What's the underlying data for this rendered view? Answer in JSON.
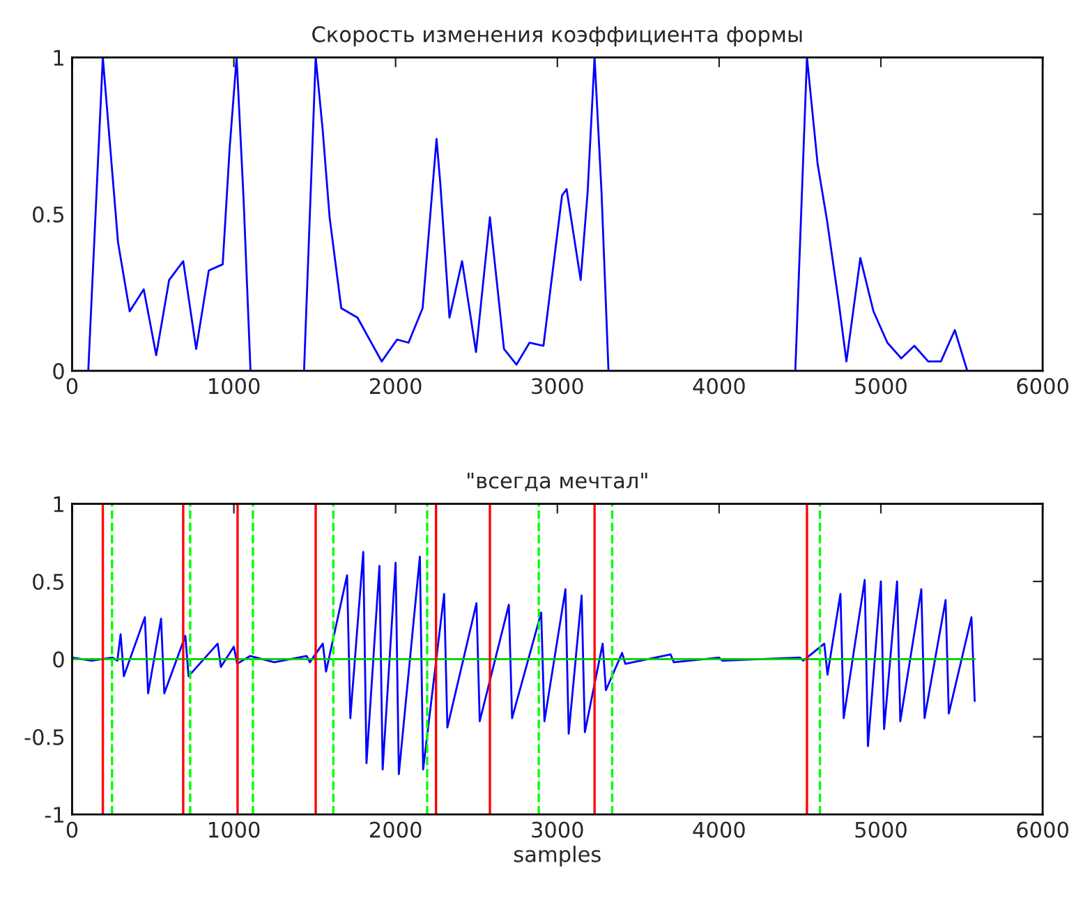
{
  "chart_data": [
    {
      "type": "line",
      "title": "Скорость изменения коэффициента формы",
      "xlim": [
        0,
        6000
      ],
      "xticks": [
        0,
        1000,
        2000,
        3000,
        4000,
        5000,
        6000
      ],
      "ylim": [
        0,
        1
      ],
      "yticks": [
        0,
        0.5,
        1
      ],
      "grid": false,
      "series": [
        {
          "color": "#0000ff",
          "x": [
            100,
            190,
            284,
            356,
            443,
            520,
            600,
            687,
            767,
            845,
            931,
            974,
            1017,
            1060,
            1103,
            1270,
            1434,
            1506,
            1549,
            1592,
            1664,
            1764,
            1914,
            2009,
            2080,
            2167,
            2253,
            2276,
            2333,
            2411,
            2497,
            2583,
            2670,
            2747,
            2828,
            2914,
            3029,
            3057,
            3144,
            3187,
            3230,
            3273,
            3316,
            3900,
            4471,
            4543,
            4609,
            4667,
            4739,
            4787,
            4873,
            4954,
            5040,
            5126,
            5207,
            5293,
            5371,
            5457,
            5534
          ],
          "values": [
            0,
            1,
            0.41,
            0.19,
            0.26,
            0.05,
            0.29,
            0.35,
            0.07,
            0.32,
            0.34,
            0.71,
            1,
            0.55,
            0,
            null,
            0,
            1,
            0.77,
            0.49,
            0.2,
            0.17,
            0.03,
            0.1,
            0.09,
            0.2,
            0.74,
            0.6,
            0.17,
            0.35,
            0.06,
            0.49,
            0.07,
            0.02,
            0.09,
            0.08,
            0.56,
            0.58,
            0.29,
            0.57,
            1,
            0.57,
            0,
            null,
            0,
            1,
            0.66,
            0.48,
            0.22,
            0.03,
            0.36,
            0.19,
            0.09,
            0.04,
            0.08,
            0.03,
            0.03,
            0.13,
            0
          ]
        }
      ]
    },
    {
      "type": "line",
      "title": "\"всегда мечтал\"",
      "xlabel": "samples",
      "xlim": [
        0,
        6000
      ],
      "xticks": [
        0,
        1000,
        2000,
        3000,
        4000,
        5000,
        6000
      ],
      "ylim": [
        -1,
        1
      ],
      "yticks": [
        -1,
        -0.5,
        0,
        0.5,
        1
      ],
      "grid": false,
      "series": [
        {
          "color": "#0000ff",
          "line_style": "solid",
          "x": [
            0,
            120,
            250,
            280,
            300,
            320,
            450,
            470,
            550,
            570,
            700,
            720,
            900,
            920,
            1000,
            1020,
            1100,
            1250,
            1450,
            1470,
            1550,
            1570,
            1700,
            1720,
            1800,
            1820,
            1900,
            1920,
            2000,
            2020,
            2150,
            2170,
            2300,
            2320,
            2500,
            2520,
            2700,
            2720,
            2900,
            2920,
            3050,
            3070,
            3150,
            3170,
            3280,
            3300,
            3400,
            3420,
            3700,
            3720,
            4000,
            4020,
            4500,
            4520,
            4650,
            4670,
            4750,
            4770,
            4900,
            4920,
            5000,
            5020,
            5100,
            5120,
            5250,
            5270,
            5400,
            5420,
            5560,
            5580
          ],
          "values": [
            0.01,
            -0.01,
            0.01,
            -0.01,
            0.16,
            -0.11,
            0.27,
            -0.22,
            0.26,
            -0.22,
            0.15,
            -0.11,
            0.1,
            -0.05,
            0.08,
            -0.03,
            0.02,
            -0.02,
            0.02,
            -0.02,
            0.1,
            -0.08,
            0.54,
            -0.38,
            0.69,
            -0.67,
            0.6,
            -0.71,
            0.62,
            -0.74,
            0.66,
            -0.71,
            0.42,
            -0.44,
            0.36,
            -0.4,
            0.35,
            -0.38,
            0.3,
            -0.4,
            0.45,
            -0.48,
            0.41,
            -0.47,
            0.1,
            -0.2,
            0.04,
            -0.03,
            0.03,
            -0.02,
            0.01,
            -0.01,
            0.01,
            -0.01,
            0.1,
            -0.1,
            0.42,
            -0.38,
            0.51,
            -0.56,
            0.5,
            -0.45,
            0.5,
            -0.4,
            0.45,
            -0.38,
            0.38,
            -0.35,
            0.27,
            -0.27
          ]
        },
        {
          "color": "#00cc00",
          "line_style": "solid",
          "x": [
            0,
            5580
          ],
          "values": [
            0,
            0
          ]
        }
      ],
      "ref_lines": [
        {
          "axis": "x",
          "value": 190,
          "color": "#ff0000",
          "line_style": "solid"
        },
        {
          "axis": "x",
          "value": 687,
          "color": "#ff0000",
          "line_style": "solid"
        },
        {
          "axis": "x",
          "value": 1023,
          "color": "#ff0000",
          "line_style": "solid"
        },
        {
          "axis": "x",
          "value": 1506,
          "color": "#ff0000",
          "line_style": "solid"
        },
        {
          "axis": "x",
          "value": 2250,
          "color": "#ff0000",
          "line_style": "solid"
        },
        {
          "axis": "x",
          "value": 2583,
          "color": "#ff0000",
          "line_style": "solid"
        },
        {
          "axis": "x",
          "value": 3230,
          "color": "#ff0000",
          "line_style": "solid"
        },
        {
          "axis": "x",
          "value": 4543,
          "color": "#ff0000",
          "line_style": "solid"
        },
        {
          "axis": "x",
          "value": 247,
          "color": "#00ff00",
          "line_style": "dashed"
        },
        {
          "axis": "x",
          "value": 730,
          "color": "#00ff00",
          "line_style": "dashed"
        },
        {
          "axis": "x",
          "value": 1118,
          "color": "#00ff00",
          "line_style": "dashed"
        },
        {
          "axis": "x",
          "value": 1615,
          "color": "#00ff00",
          "line_style": "dashed"
        },
        {
          "axis": "x",
          "value": 2195,
          "color": "#00ff00",
          "line_style": "dashed"
        },
        {
          "axis": "x",
          "value": 2885,
          "color": "#00ff00",
          "line_style": "dashed"
        },
        {
          "axis": "x",
          "value": 3339,
          "color": "#00ff00",
          "line_style": "dashed"
        },
        {
          "axis": "x",
          "value": 4623,
          "color": "#00ff00",
          "line_style": "dashed"
        }
      ]
    }
  ]
}
